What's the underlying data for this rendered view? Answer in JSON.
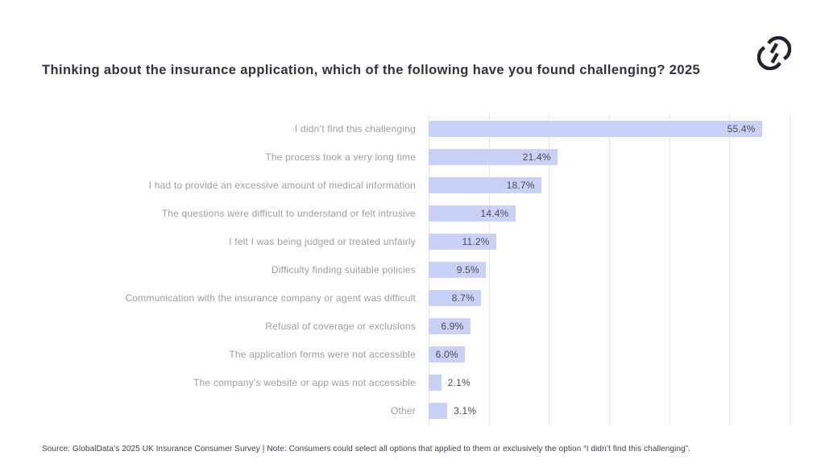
{
  "title": "Thinking about the insurance application, which of the following have you found challenging? 2025",
  "logo": {
    "name": "globaldata-logo-mark",
    "color": "#23232d"
  },
  "chart_data": {
    "type": "bar",
    "orientation": "horizontal",
    "title": "Thinking about the insurance application, which of the following have you found challenging? 2025",
    "categories": [
      "I didn’t find this challenging",
      "The process took a very long time",
      "I had to provide an excessive amount of medical information",
      "The questions were difficult to understand or felt intrusive",
      "I felt I was being judged or treated unfairly",
      "Difficulty finding suitable policies",
      "Communication with the insurance company or agent was difficult",
      "Refusal of coverage or exclusions",
      "The application forms were not accessible",
      "The company’s website or app was not accessible",
      "Other"
    ],
    "values": [
      55.4,
      21.4,
      18.7,
      14.4,
      11.2,
      9.5,
      8.7,
      6.9,
      6.0,
      2.1,
      3.1
    ],
    "value_labels": [
      "55.4%",
      "21.4%",
      "18.7%",
      "14.4%",
      "11.2%",
      "9.5%",
      "8.7%",
      "6.9%",
      "6.0%",
      "2.1%",
      "3.1%"
    ],
    "xlabel": "",
    "ylabel": "",
    "xlim": [
      0,
      60
    ],
    "gridline_interval": 10,
    "grid": "vertical",
    "legend": "none",
    "bar_color": "#c9d2f6",
    "grid_color": "#e8e8ec",
    "category_label_color": "#9c9ca4",
    "value_label_color": "#4b4b55"
  },
  "footer": {
    "source_note": "Source: GlobalData’s 2025 UK Insurance Consumer Survey | Note: Consumers could select all options that applied to them or exclusively the option “I didn’t find this challenging”."
  }
}
